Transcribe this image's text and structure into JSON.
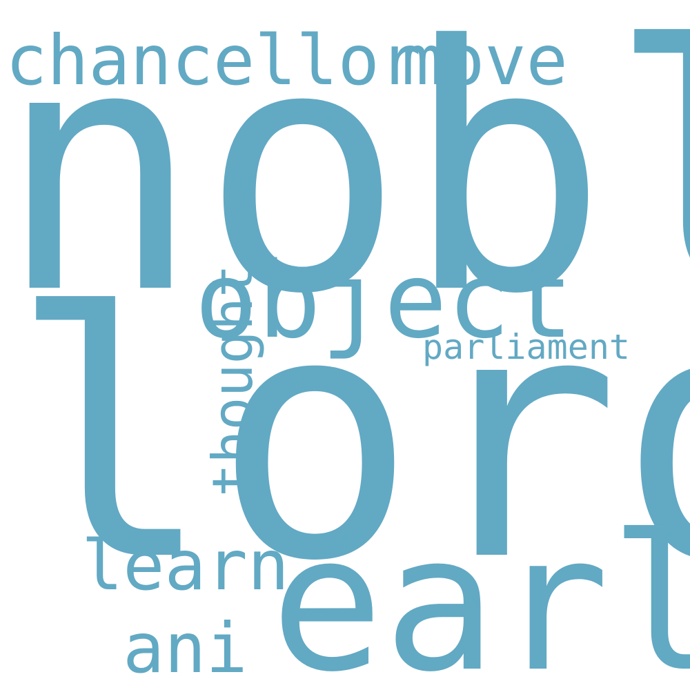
{
  "cloud": {
    "word_color": "#62a9c4",
    "background_color": "#ffffff",
    "words": {
      "nobl": "nobl",
      "lord": "lord",
      "earl": "earl",
      "object": "object",
      "chancellor": "chancellor",
      "move": "move",
      "learn": "learn",
      "ani": "ani",
      "parliament": "parliament",
      "thought": "thought"
    }
  }
}
